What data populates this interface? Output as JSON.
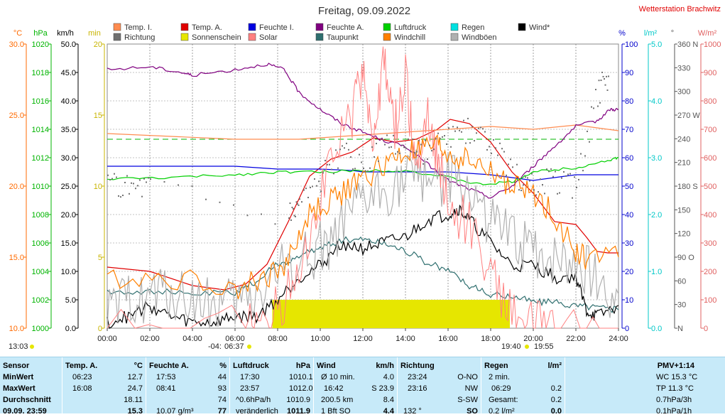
{
  "chart_data": {
    "type": "line",
    "title": "Freitag, 09.09.2022",
    "station": "Wetterstation Brachwitz",
    "x_ticks": [
      "00:00",
      "02:00",
      "04:00",
      "06:00",
      "08:00",
      "10:00",
      "12:00",
      "14:00",
      "16:00",
      "18:00",
      "20:00",
      "22:00",
      "24:00"
    ],
    "x_range_hours": [
      0,
      24
    ],
    "axes": {
      "temp_c": {
        "unit": "°C",
        "range": [
          10,
          30
        ],
        "ticks": [
          "10.0",
          "15.0",
          "20.0",
          "25.0",
          "30.0"
        ],
        "color": "#ff6a00"
      },
      "pressure_hpa": {
        "unit": "hPa",
        "range": [
          1000,
          1020
        ],
        "ticks": [
          "1000",
          "1002",
          "1004",
          "1006",
          "1008",
          "1010",
          "1012",
          "1014",
          "1016",
          "1018",
          "1020"
        ],
        "color": "#00b400"
      },
      "wind_kmh": {
        "unit": "km/h",
        "range": [
          0,
          50
        ],
        "ticks": [
          "0.0",
          "5.0",
          "10.0",
          "15.0",
          "20.0",
          "25.0",
          "30.0",
          "35.0",
          "40.0",
          "45.0",
          "50.0"
        ],
        "color": "#000000"
      },
      "sun_min": {
        "unit": "min",
        "range": [
          0,
          20
        ],
        "ticks": [
          "0",
          "5",
          "10",
          "15",
          "20"
        ],
        "color": "#c8b400"
      },
      "humidity_pct": {
        "unit": "%",
        "range": [
          0,
          100
        ],
        "ticks": [
          "0",
          "10",
          "20",
          "30",
          "40",
          "50",
          "60",
          "70",
          "80",
          "90",
          "100"
        ],
        "color": "#0000cc"
      },
      "rain_lm2": {
        "unit": "l/m²",
        "range": [
          0,
          5
        ],
        "ticks": [
          "0.0",
          "1.0",
          "2.0",
          "3.0",
          "4.0",
          "5.0"
        ],
        "color": "#00c8c8"
      },
      "dir_deg": {
        "unit": "°",
        "range": [
          0,
          360
        ],
        "ticks": [
          "N",
          "30",
          "60",
          "90 O",
          "120",
          "150",
          "180 S",
          "210",
          "240",
          "270 W",
          "300",
          "330",
          "360 N"
        ],
        "color": "#555555"
      },
      "solar_wm2": {
        "unit": "W/m²",
        "range": [
          0,
          1000
        ],
        "ticks": [
          "0",
          "100",
          "200",
          "300",
          "400",
          "500",
          "600",
          "700",
          "800",
          "900",
          "1000"
        ],
        "color": "#e06060"
      }
    },
    "legend": [
      {
        "name": "Temp. I.",
        "color": "#ff8c50"
      },
      {
        "name": "Richtung",
        "color": "#707070"
      },
      {
        "name": "Temp. A.",
        "color": "#e00000"
      },
      {
        "name": "Sonnenschein",
        "color": "#e6e600"
      },
      {
        "name": "Feuchte I.",
        "color": "#0000e0"
      },
      {
        "name": "Solar",
        "color": "#ff8080"
      },
      {
        "name": "Feuchte A.",
        "color": "#800080"
      },
      {
        "name": "Taupunkt",
        "color": "#2f6f6f"
      },
      {
        "name": "Luftdruck",
        "color": "#00d000"
      },
      {
        "name": "Windchill",
        "color": "#ff8000"
      },
      {
        "name": "Regen",
        "color": "#00e0e0"
      },
      {
        "name": "Windböen",
        "color": "#b0b0b0"
      },
      {
        "name": "Wind*",
        "color": "#000000"
      }
    ],
    "series": [
      {
        "name": "Temp. A.",
        "axis": "temp_c",
        "color": "#e00000",
        "x": [
          0,
          2,
          4,
          5.5,
          6.5,
          7.5,
          8.5,
          9.5,
          10.5,
          11.5,
          12.5,
          13.5,
          14.5,
          15.5,
          16.1,
          17,
          18,
          19,
          20,
          21,
          22,
          22.5,
          23,
          23.5,
          24
        ],
        "y": [
          14.3,
          14.0,
          13.0,
          12.7,
          13.1,
          14.5,
          17.5,
          20.7,
          21.9,
          22.4,
          23.4,
          23.1,
          23.3,
          24.0,
          24.7,
          24.4,
          23.1,
          21.0,
          19.5,
          17.5,
          17.3,
          16.4,
          15.4,
          15.3,
          15.3
        ]
      },
      {
        "name": "Temp. I.",
        "axis": "temp_c",
        "color": "#ff8c50",
        "x": [
          0,
          3,
          6,
          9,
          12,
          15,
          18,
          20,
          22,
          24
        ],
        "y": [
          23.7,
          23.5,
          23.3,
          23.3,
          23.6,
          23.9,
          24.2,
          24.0,
          24.3,
          23.9
        ]
      },
      {
        "name": "Feuchte A.",
        "axis": "humidity_pct",
        "color": "#800080",
        "x": [
          0,
          2,
          3.5,
          4,
          6,
          7.5,
          8.3,
          9,
          10,
          11,
          12,
          13,
          14,
          15,
          16,
          17,
          18,
          19,
          20,
          21,
          22,
          23,
          23.6,
          24
        ],
        "y": [
          91,
          92,
          90,
          89,
          91,
          93,
          91,
          83,
          77,
          72,
          69,
          66,
          64,
          58,
          52,
          49,
          46,
          50,
          57,
          64,
          71,
          73,
          77,
          77
        ]
      },
      {
        "name": "Feuchte I.",
        "axis": "humidity_pct",
        "color": "#0000e0",
        "x": [
          0,
          6,
          8,
          10,
          11.5,
          12,
          14,
          16,
          18,
          19,
          20,
          22,
          24
        ],
        "y": [
          57,
          57,
          56,
          56,
          55.5,
          55,
          55,
          55,
          54,
          53,
          52,
          54,
          54
        ]
      },
      {
        "name": "Luftdruck",
        "axis": "pressure_hpa",
        "color": "#00d000",
        "x": [
          0,
          3,
          6,
          8,
          10,
          12,
          14,
          16,
          17.5,
          19,
          20,
          22,
          23.5,
          24
        ],
        "y": [
          1010.5,
          1010.6,
          1010.8,
          1011.0,
          1011.0,
          1011.1,
          1011.1,
          1010.6,
          1010.1,
          1010.3,
          1011.0,
          1011.3,
          1011.8,
          1012.0
        ]
      },
      {
        "name": "Taupunkt",
        "axis": "temp_c",
        "color": "#2f6f6f",
        "x": [
          0,
          2,
          4,
          6,
          7,
          8,
          9,
          10,
          11,
          12,
          13,
          14,
          15,
          16,
          17,
          18,
          19,
          20,
          21,
          22,
          23,
          24
        ],
        "y": [
          12.6,
          12.6,
          12.4,
          12.5,
          13.3,
          14.5,
          15.0,
          15.7,
          16.2,
          16.3,
          16.0,
          15.5,
          14.6,
          14.1,
          13.0,
          12.3,
          12.3,
          11.9,
          11.8,
          11.6,
          11.5,
          11.3
        ]
      },
      {
        "name": "Wind*",
        "axis": "wind_kmh",
        "color": "#000000",
        "x": [
          0,
          1,
          2,
          3,
          4,
          5,
          6,
          7,
          8,
          9,
          10,
          11,
          12,
          13,
          14,
          15,
          16,
          16.5,
          17,
          18,
          19,
          20,
          21,
          22,
          22.5,
          23,
          24
        ],
        "y": [
          1,
          2,
          4,
          2,
          1,
          1,
          2,
          2,
          5,
          9,
          11,
          15,
          14,
          15,
          16,
          19,
          20,
          21,
          19,
          15,
          11,
          11,
          9,
          9,
          3,
          2,
          4
        ]
      },
      {
        "name": "Windböen",
        "axis": "wind_kmh",
        "color": "#b0b0b0",
        "x": [
          0,
          1,
          2,
          3,
          4,
          5,
          6,
          7,
          8,
          9,
          10,
          11,
          12,
          13,
          14,
          15,
          16,
          17,
          18,
          19,
          20,
          21,
          22,
          23,
          24
        ],
        "y": [
          2,
          5,
          6,
          6,
          5,
          4,
          4,
          6,
          10,
          12,
          14,
          17,
          22,
          24,
          26,
          27,
          26,
          24,
          19,
          15,
          14,
          12,
          12,
          8,
          6
        ]
      },
      {
        "name": "Solar",
        "axis": "solar_wm2",
        "color": "#ff8080",
        "x": [
          0,
          6.5,
          7.5,
          8.5,
          9.5,
          10.5,
          11.5,
          12,
          12.5,
          13,
          13.5,
          14,
          14.5,
          15,
          15.5,
          16,
          17,
          18,
          19,
          20,
          21,
          24
        ],
        "y": [
          0,
          0,
          20,
          130,
          350,
          580,
          750,
          920,
          650,
          930,
          700,
          880,
          560,
          760,
          600,
          430,
          370,
          200,
          50,
          10,
          0,
          0
        ]
      },
      {
        "name": "Windchill",
        "axis": "temp_c",
        "color": "#ff8000",
        "x": [
          0,
          3,
          6,
          7.5,
          8.5,
          9.5,
          10.5,
          11.5,
          12.5,
          13.5,
          14.5,
          15.5,
          16,
          17,
          18,
          19,
          20,
          21,
          22,
          22.5,
          24
        ],
        "y": [
          13.6,
          13.5,
          12.9,
          13.5,
          14.8,
          18.0,
          19.0,
          20.0,
          21.0,
          22.0,
          22.5,
          22.8,
          22.2,
          21.8,
          21.0,
          20.0,
          19.5,
          18.0,
          15.3,
          15.0,
          15.0
        ]
      },
      {
        "name": "Richtung",
        "axis": "dir_deg",
        "color": "#707070",
        "x": [
          0,
          1,
          2,
          8.5,
          9,
          10,
          11,
          12,
          13,
          14,
          15,
          16,
          17,
          18,
          19,
          20,
          21,
          22,
          23,
          23.5
        ],
        "y": [
          182,
          182,
          185,
          140,
          165,
          190,
          220,
          210,
          230,
          230,
          220,
          240,
          250,
          230,
          200,
          180,
          190,
          180,
          300,
          320
        ]
      },
      {
        "name": "Sonnenschein",
        "axis": "sun_min",
        "color": "#e6e600",
        "x": [
          7.75,
          18.9
        ],
        "y": [
          2,
          2
        ]
      }
    ]
  },
  "panel": {
    "sensor": {
      "header": "Sensor",
      "rows": [
        "MinWert",
        "MaxWert",
        "Durchschnitt",
        "09.09. 23:59"
      ]
    },
    "temp": {
      "header": "Temp. A.",
      "unit": "°C",
      "rows": [
        [
          "06:23",
          "12.7"
        ],
        [
          "16:08",
          "24.7"
        ],
        [
          "",
          "18.11"
        ],
        [
          "",
          "15.3"
        ]
      ]
    },
    "hum": {
      "header": "Feuchte A.",
      "unit": "%",
      "rows": [
        [
          "17:53",
          "44"
        ],
        [
          "08:41",
          "93"
        ],
        [
          "",
          "74"
        ],
        [
          "10.07 g/m³",
          "77"
        ]
      ]
    },
    "press": {
      "header": "Luftdruck",
      "unit": "hPa",
      "rows": [
        [
          "17:30",
          "1010.1"
        ],
        [
          "23:57",
          "1012.0"
        ],
        [
          "^0.6hPa/h",
          "1010.9"
        ],
        [
          "veränderlich",
          "1011.9"
        ]
      ]
    },
    "wind": {
      "header": "Wind",
      "unit": "km/h",
      "rows": [
        [
          "Ø 10 min.",
          "4.0"
        ],
        [
          "16:42",
          "S 23.9"
        ],
        [
          "200.5 km",
          "8.4"
        ],
        [
          "1 Bft SO",
          "4.4"
        ]
      ]
    },
    "dir": {
      "header": "Richtung",
      "rows": [
        [
          "23:24",
          "O-NO"
        ],
        [
          "23:16",
          "NW"
        ],
        [
          "",
          "S-SW"
        ],
        [
          "132 °",
          "SO"
        ]
      ]
    },
    "rain": {
      "header": "Regen",
      "unit": "l/m²",
      "rows": [
        [
          "2 min.",
          ""
        ],
        [
          "06:29",
          "0.2"
        ],
        [
          "Gesamt:",
          "0.2"
        ],
        [
          "0.2 l/m²",
          "0.0"
        ]
      ]
    },
    "pmv": {
      "header": "PMV+1:14",
      "rows": [
        "WC 15.3 °C",
        "TP 11.3 °C",
        "0.7hPa/3h",
        "0.1hPa/1h"
      ]
    }
  },
  "markers": {
    "sunrise": "06:37",
    "sunset": "19:55",
    "moonset": "-04:",
    "left": "13:03",
    "mid": "19:40"
  }
}
